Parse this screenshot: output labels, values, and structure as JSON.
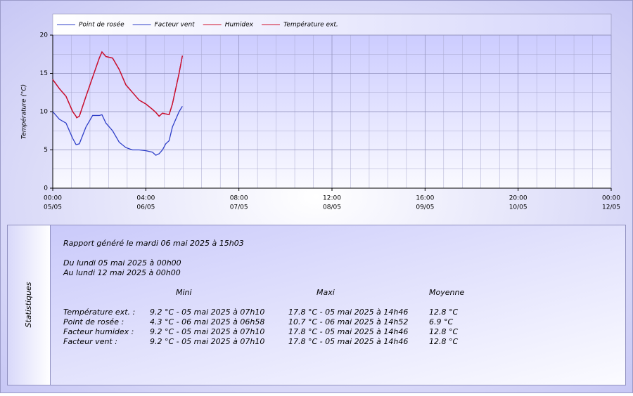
{
  "chart_data": {
    "type": "line",
    "ylabel": "Température (°C)",
    "x": [
      0,
      2,
      4,
      6,
      7,
      7.2,
      8,
      10,
      12,
      14,
      14.8,
      16,
      18,
      20,
      22,
      24,
      26,
      28,
      30,
      31,
      32,
      33,
      34,
      35,
      36,
      38,
      39
    ],
    "series": [
      {
        "name": "Point de rosée",
        "color": "#2f3fc8",
        "values": [
          10.0,
          9.0,
          8.5,
          6.5,
          5.7,
          5.7,
          5.8,
          8.0,
          9.5,
          9.5,
          9.6,
          8.5,
          7.5,
          6.0,
          5.3,
          5.0,
          5.0,
          4.9,
          4.7,
          4.3,
          4.5,
          5.0,
          5.8,
          6.2,
          8.0,
          10.0,
          10.7
        ]
      },
      {
        "name": "Facteur vent",
        "color": "#2f3fc8",
        "values": [
          14.2,
          13.0,
          12.0,
          10.0,
          9.4,
          9.2,
          9.4,
          12.0,
          14.5,
          17.0,
          17.8,
          17.2,
          17.0,
          15.5,
          13.5,
          12.5,
          11.5,
          11.0,
          10.3,
          9.9,
          9.4,
          9.8,
          9.7,
          9.6,
          11.0,
          15.0,
          17.3
        ]
      },
      {
        "name": "Humidex",
        "color": "#d0102a",
        "values": [
          14.2,
          13.0,
          12.0,
          10.0,
          9.4,
          9.2,
          9.4,
          12.0,
          14.5,
          17.0,
          17.8,
          17.2,
          17.0,
          15.5,
          13.5,
          12.5,
          11.5,
          11.0,
          10.3,
          9.9,
          9.4,
          9.8,
          9.7,
          9.6,
          11.0,
          15.0,
          17.3
        ]
      },
      {
        "name": "Température ext.",
        "color": "#d0102a",
        "values": [
          14.2,
          13.0,
          12.0,
          10.0,
          9.4,
          9.2,
          9.4,
          12.0,
          14.5,
          17.0,
          17.8,
          17.2,
          17.0,
          15.5,
          13.5,
          12.5,
          11.5,
          11.0,
          10.3,
          9.9,
          9.4,
          9.8,
          9.7,
          9.6,
          11.0,
          15.0,
          17.3
        ]
      }
    ],
    "xlim": [
      0,
      168
    ],
    "xticks": [
      {
        "value": 0,
        "label": "00:00",
        "sublabel": "05/05"
      },
      {
        "value": 28,
        "label": "04:00",
        "sublabel": "06/05"
      },
      {
        "value": 56,
        "label": "08:00",
        "sublabel": "07/05"
      },
      {
        "value": 84,
        "label": "12:00",
        "sublabel": "08/05"
      },
      {
        "value": 112,
        "label": "16:00",
        "sublabel": "09/05"
      },
      {
        "value": 140,
        "label": "20:00",
        "sublabel": "10/05"
      },
      {
        "value": 168,
        "label": "00:00",
        "sublabel": "12/05"
      }
    ],
    "ylim": [
      0,
      20
    ],
    "yticks": [
      0,
      5,
      10,
      15,
      20
    ],
    "grid": true,
    "legend": "top"
  },
  "statistics": {
    "title": "Statistiques",
    "report": "Rapport généré le mardi 06 mai 2025 à 15h03",
    "from": "Du lundi 05 mai 2025 à 00h00",
    "to": "Au lundi 12 mai 2025 à 00h00",
    "headers": [
      "Mini",
      "Maxi",
      "Moyenne"
    ],
    "rows": [
      [
        "Température ext. :",
        "9.2 °C - 05 mai 2025 à 07h10",
        "17.8 °C - 05 mai 2025 à 14h46",
        "12.8 °C"
      ],
      [
        "Point de rosée :",
        "4.3 °C - 06 mai 2025 à 06h58",
        "10.7 °C - 06 mai 2025 à 14h52",
        "6.9 °C"
      ],
      [
        "Facteur humidex :",
        "9.2 °C - 05 mai 2025 à 07h10",
        "17.8 °C - 05 mai 2025 à 14h46",
        "12.8 °C"
      ],
      [
        "Facteur vent :",
        "9.2 °C - 05 mai 2025 à 07h10",
        "17.8 °C - 05 mai 2025 à 14h46",
        "12.8 °C"
      ]
    ]
  }
}
